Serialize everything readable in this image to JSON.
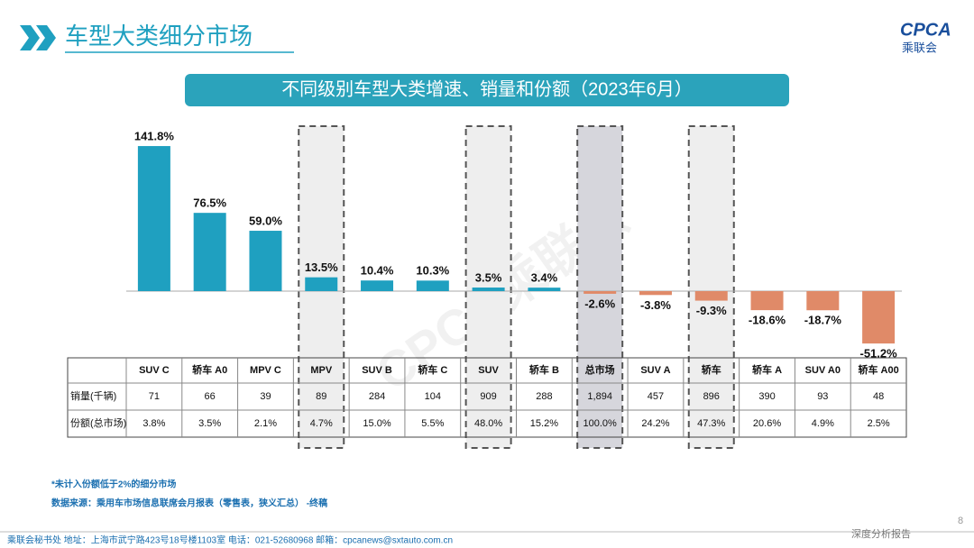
{
  "header": {
    "title": "车型大类细分市场",
    "logo": "CPCA",
    "logo_sub": "乘联会"
  },
  "chart_data": {
    "type": "bar",
    "title": "不同级别车型大类增速、销量和份额（2023年6月）",
    "categories": [
      "SUV C",
      "轿车 A0",
      "MPV C",
      "MPV",
      "SUV B",
      "轿车 C",
      "SUV",
      "轿车 B",
      "总市场",
      "SUV A",
      "轿车",
      "轿车 A",
      "SUV A0",
      "轿车 A00"
    ],
    "values": [
      141.8,
      76.5,
      59.0,
      13.5,
      10.4,
      10.3,
      3.5,
      3.4,
      -2.6,
      -3.8,
      -9.3,
      -18.6,
      -18.7,
      -51.2
    ],
    "value_labels": [
      "141.8%",
      "76.5%",
      "59.0%",
      "13.5%",
      "10.4%",
      "10.3%",
      "3.5%",
      "3.4%",
      "-2.6%",
      "-3.8%",
      "-9.3%",
      "-18.6%",
      "-18.7%",
      "-51.2%"
    ],
    "positive_color": "#1fa0c0",
    "negative_color": "#e08a68",
    "highlighted": [
      3,
      6,
      8,
      10
    ],
    "emphasized": 8
  },
  "table": {
    "rows": [
      {
        "label": "销量(千辆)",
        "cells": [
          "71",
          "66",
          "39",
          "89",
          "284",
          "104",
          "909",
          "288",
          "1,894",
          "457",
          "896",
          "390",
          "93",
          "48"
        ]
      },
      {
        "label": "份额(总市场)",
        "cells": [
          "3.8%",
          "3.5%",
          "2.1%",
          "4.7%",
          "15.0%",
          "5.5%",
          "48.0%",
          "15.2%",
          "100.0%",
          "24.2%",
          "47.3%",
          "20.6%",
          "4.9%",
          "2.5%"
        ]
      }
    ]
  },
  "watermark": "CPCA乘联会",
  "notes": [
    "*未计入份额低于2%的细分市场",
    "数据来源：乘用车市场信息联席会月报表（零售表，狭义汇总） -终稿"
  ],
  "footer": {
    "text": "乘联会秘书处  地址：上海市武宁路423号18号楼1103室  电话：021-52680968  邮箱：cpcanews@sxtauto.com.cn",
    "tag": "深度分析报告",
    "page": "8"
  }
}
